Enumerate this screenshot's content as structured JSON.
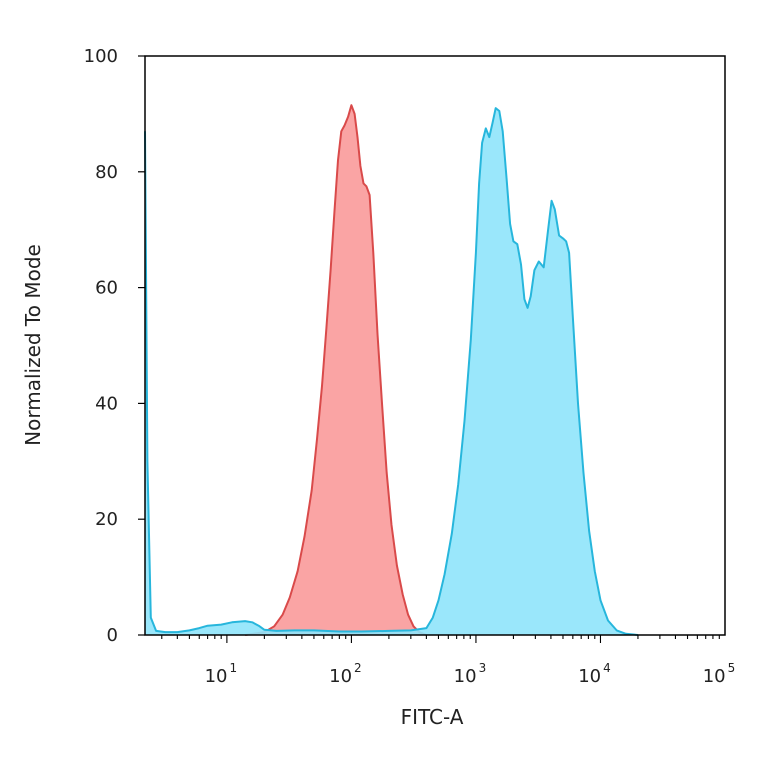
{
  "chart_data": {
    "type": "area",
    "title": "",
    "xlabel": "FITC-A",
    "ylabel": "Normalized To Mode",
    "x_scale": "log",
    "xlim": [
      2.2,
      100000
    ],
    "ylim": [
      0,
      100
    ],
    "x_tick_labels": [
      {
        "value": 10,
        "base": "10",
        "exp": "1"
      },
      {
        "value": 100,
        "base": "10",
        "exp": "2"
      },
      {
        "value": 1000,
        "base": "10",
        "exp": "3"
      },
      {
        "value": 10000,
        "base": "10",
        "exp": "4"
      },
      {
        "value": 100000,
        "base": "10",
        "exp": "5"
      }
    ],
    "y_ticks": [
      0,
      20,
      40,
      60,
      80,
      100
    ],
    "y_tick_labels": [
      "0",
      "20",
      "40",
      "60",
      "80",
      "100"
    ],
    "grid": false,
    "legend": "none",
    "series": [
      {
        "fill": "#fa9a9a",
        "stroke": "#d94a4a",
        "points": [
          [
            14,
            0
          ],
          [
            20,
            0.5
          ],
          [
            24,
            1.5
          ],
          [
            28,
            3.5
          ],
          [
            32,
            6.5
          ],
          [
            37,
            11
          ],
          [
            42,
            17
          ],
          [
            48,
            25
          ],
          [
            53,
            34
          ],
          [
            58,
            43
          ],
          [
            63,
            53
          ],
          [
            68,
            63
          ],
          [
            73,
            73
          ],
          [
            78,
            82
          ],
          [
            83,
            87
          ],
          [
            88,
            88
          ],
          [
            94,
            89.5
          ],
          [
            100,
            91.5
          ],
          [
            106,
            90
          ],
          [
            112,
            86
          ],
          [
            118,
            81
          ],
          [
            125,
            78
          ],
          [
            132,
            77.5
          ],
          [
            140,
            76
          ],
          [
            150,
            66
          ],
          [
            162,
            52
          ],
          [
            176,
            40
          ],
          [
            192,
            28
          ],
          [
            210,
            19
          ],
          [
            232,
            12
          ],
          [
            258,
            7
          ],
          [
            285,
            3.5
          ],
          [
            315,
            1.5
          ],
          [
            350,
            0.5
          ],
          [
            400,
            0
          ]
        ]
      },
      {
        "fill": "#8fe4fb",
        "stroke": "#27b6dc",
        "points": [
          [
            2.2,
            87
          ],
          [
            2.3,
            30
          ],
          [
            2.45,
            3
          ],
          [
            2.7,
            0.7
          ],
          [
            3.2,
            0.5
          ],
          [
            4,
            0.5
          ],
          [
            5,
            0.8
          ],
          [
            6,
            1.2
          ],
          [
            7,
            1.6
          ],
          [
            9,
            1.8
          ],
          [
            11,
            2.2
          ],
          [
            14,
            2.4
          ],
          [
            16,
            2.2
          ],
          [
            18,
            1.6
          ],
          [
            20,
            0.9
          ],
          [
            25,
            0.7
          ],
          [
            35,
            0.8
          ],
          [
            50,
            0.8
          ],
          [
            80,
            0.6
          ],
          [
            120,
            0.6
          ],
          [
            200,
            0.7
          ],
          [
            300,
            0.8
          ],
          [
            400,
            1.2
          ],
          [
            450,
            3
          ],
          [
            500,
            6
          ],
          [
            560,
            10.5
          ],
          [
            640,
            17.5
          ],
          [
            720,
            26
          ],
          [
            810,
            37
          ],
          [
            910,
            51
          ],
          [
            1000,
            66
          ],
          [
            1060,
            78
          ],
          [
            1120,
            85
          ],
          [
            1200,
            87.5
          ],
          [
            1280,
            86
          ],
          [
            1360,
            88.5
          ],
          [
            1440,
            91
          ],
          [
            1540,
            90.5
          ],
          [
            1640,
            87
          ],
          [
            1760,
            79
          ],
          [
            1880,
            71
          ],
          [
            2000,
            68
          ],
          [
            2150,
            67.5
          ],
          [
            2300,
            64
          ],
          [
            2450,
            58
          ],
          [
            2600,
            56.5
          ],
          [
            2750,
            58.5
          ],
          [
            2950,
            63
          ],
          [
            3200,
            64.5
          ],
          [
            3500,
            63.5
          ],
          [
            3800,
            70
          ],
          [
            4050,
            75
          ],
          [
            4300,
            73.5
          ],
          [
            4650,
            69
          ],
          [
            5000,
            68.5
          ],
          [
            5300,
            68
          ],
          [
            5600,
            66
          ],
          [
            6000,
            55
          ],
          [
            6600,
            40
          ],
          [
            7300,
            28
          ],
          [
            8100,
            18
          ],
          [
            9000,
            11
          ],
          [
            10000,
            6
          ],
          [
            11500,
            2.5
          ],
          [
            13500,
            0.8
          ],
          [
            16000,
            0.2
          ],
          [
            20000,
            0
          ]
        ]
      }
    ]
  }
}
